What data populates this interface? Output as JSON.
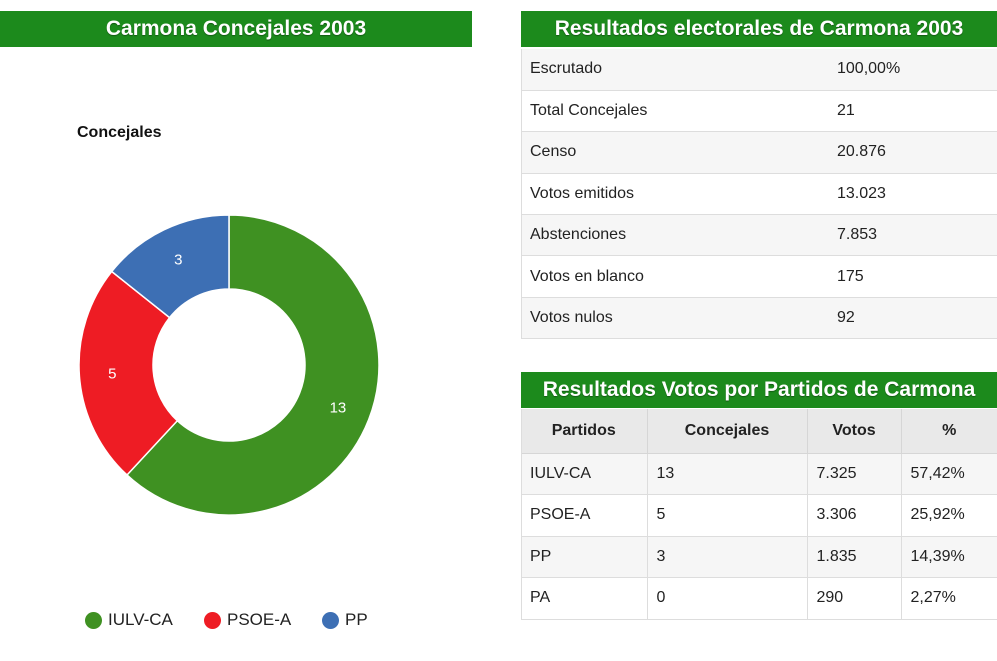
{
  "left_panel": {
    "title": "Carmona Concejales 2003"
  },
  "results_panel": {
    "title": "Resultados electorales de Carmona 2003",
    "rows": [
      {
        "label": "Escrutado",
        "value": "100,00%"
      },
      {
        "label": "Total Concejales",
        "value": "21"
      },
      {
        "label": "Censo",
        "value": "20.876"
      },
      {
        "label": "Votos emitidos",
        "value": "13.023"
      },
      {
        "label": "Abstenciones",
        "value": "7.853"
      },
      {
        "label": "Votos en blanco",
        "value": "175"
      },
      {
        "label": "Votos nulos",
        "value": "92"
      }
    ]
  },
  "parties_panel": {
    "title": "Resultados Votos por Partidos de Carmona",
    "headers": [
      "Partidos",
      "Concejales",
      "Votos",
      "%"
    ],
    "rows": [
      [
        "IULV-CA",
        "13",
        "7.325",
        "57,42%"
      ],
      [
        "PSOE-A",
        "5",
        "3.306",
        "25,92%"
      ],
      [
        "PP",
        "3",
        "1.835",
        "14,39%"
      ],
      [
        "PA",
        "0",
        "290",
        "2,27%"
      ]
    ]
  },
  "chart_data": {
    "type": "pie",
    "subtype": "donut",
    "title": "Concejales",
    "categories": [
      "IULV-CA",
      "PSOE-A",
      "PP"
    ],
    "values": [
      13,
      5,
      3
    ],
    "colors": [
      "#3f9122",
      "#ee1c24",
      "#3d6fb4"
    ],
    "data_labels": [
      "13",
      "5",
      "3"
    ],
    "legend_position": "bottom"
  }
}
